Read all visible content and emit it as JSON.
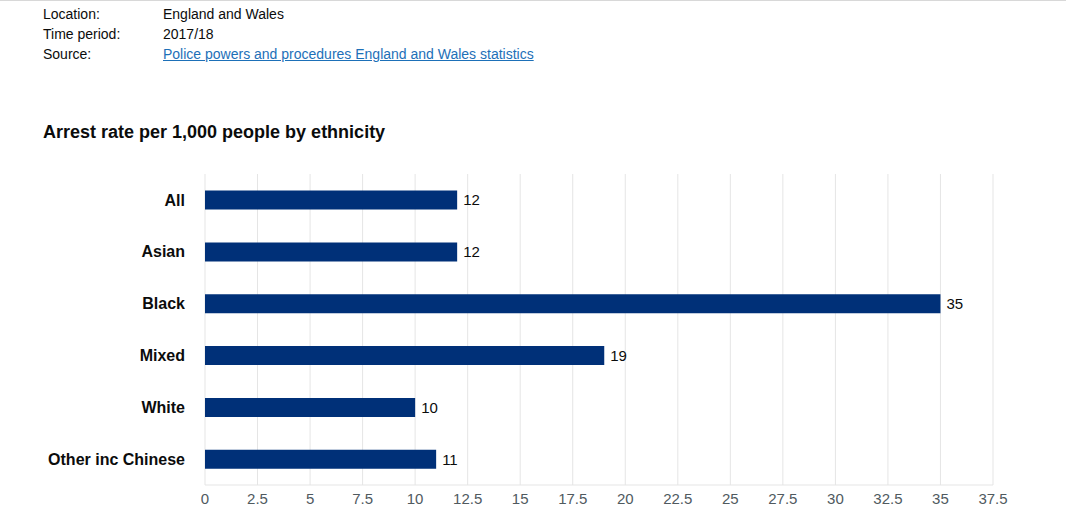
{
  "header": {
    "rows": [
      [
        "Location:",
        "England and Wales"
      ],
      [
        "Time period:",
        "2017/18"
      ],
      [
        "Source:",
        "Police powers and procedures England and Wales statistics"
      ]
    ]
  },
  "chart_data": {
    "type": "bar",
    "title": "Arrest rate per 1,000 people by ethnicity",
    "orientation": "horizontal",
    "categories": [
      "All",
      "Asian",
      "Black",
      "Mixed",
      "White",
      "Other inc Chinese"
    ],
    "values": [
      12,
      12,
      35,
      19,
      10,
      11
    ],
    "color": "#003078",
    "xlim": [
      0,
      37.5
    ],
    "xticks": [
      0,
      2.5,
      5,
      7.5,
      10,
      12.5,
      15,
      17.5,
      20,
      22.5,
      25,
      27.5,
      30,
      32.5,
      35,
      37.5
    ],
    "grid": true,
    "data_labels": true
  }
}
